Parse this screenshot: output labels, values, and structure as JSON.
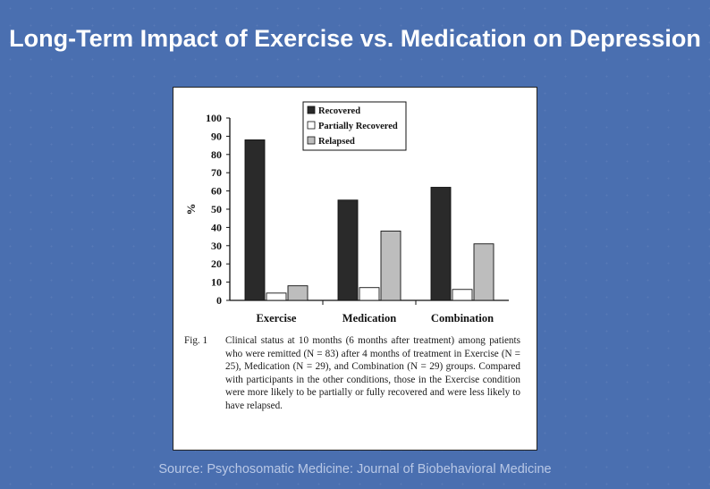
{
  "slide": {
    "title": "Long-Term Impact of Exercise vs. Medication on Depression",
    "source": "Source: Psychosomatic Medicine: Journal of Biobehavioral Medicine"
  },
  "caption": {
    "label": "Fig. 1",
    "text": "Clinical status at 10 months (6 months after treatment) among patients who were remitted (N = 83) after 4 months of treatment in Exercise (N = 25), Medication (N = 29), and Combination (N = 29) groups. Compared with participants in the other conditions, those in the Exercise condition were more likely to be partially or fully recovered and were less likely to have relapsed."
  },
  "chart_data": {
    "type": "bar",
    "categories": [
      "Exercise",
      "Medication",
      "Combination"
    ],
    "series": [
      {
        "name": "Recovered",
        "values": [
          88,
          55,
          62
        ],
        "color": "#2a2a2a"
      },
      {
        "name": "Partially Recovered",
        "values": [
          4,
          7,
          6
        ],
        "color": "#ffffff"
      },
      {
        "name": "Relapsed",
        "values": [
          8,
          38,
          31
        ],
        "color": "#bdbdbd"
      }
    ],
    "ylabel": "%",
    "ylim": [
      0,
      100
    ],
    "yticks": [
      0,
      10,
      20,
      30,
      40,
      50,
      60,
      70,
      80,
      90,
      100
    ],
    "legend_position": "top-right"
  }
}
